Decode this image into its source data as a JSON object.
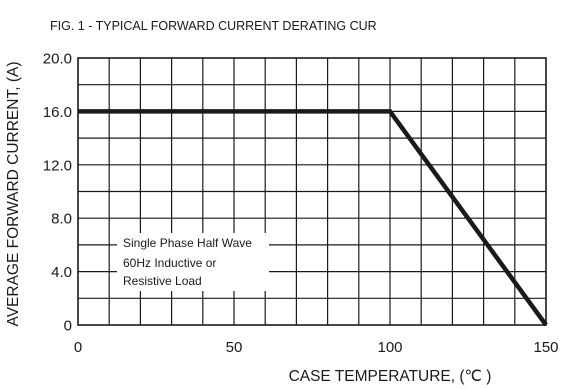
{
  "chart_data": {
    "type": "line",
    "title": "FIG. 1 - TYPICAL FORWARD CURRENT DERATING CUR",
    "xlabel": "CASE TEMPERATURE, (℃ )",
    "ylabel": "AVERAGE FORWARD CURRENT, (A)",
    "xlim": [
      0,
      150
    ],
    "ylim": [
      0,
      20
    ],
    "x_ticks": [
      "0",
      "50",
      "100",
      "150"
    ],
    "y_ticks": [
      "0",
      "4.0",
      "8.0",
      "12.0",
      "16.0",
      "20.0"
    ],
    "x_tick_values": [
      0,
      50,
      100,
      150
    ],
    "y_tick_values": [
      0,
      4,
      8,
      12,
      16,
      20
    ],
    "grid": true,
    "grid_x_step": 10,
    "grid_y_step": 2,
    "annotation": [
      "Single Phase Half Wave",
      "60Hz Inductive or",
      "Resistive Load"
    ],
    "series": [
      {
        "x": [
          0,
          100,
          150
        ],
        "y": [
          16,
          16,
          0
        ],
        "color": "#1a1a1a"
      }
    ]
  }
}
